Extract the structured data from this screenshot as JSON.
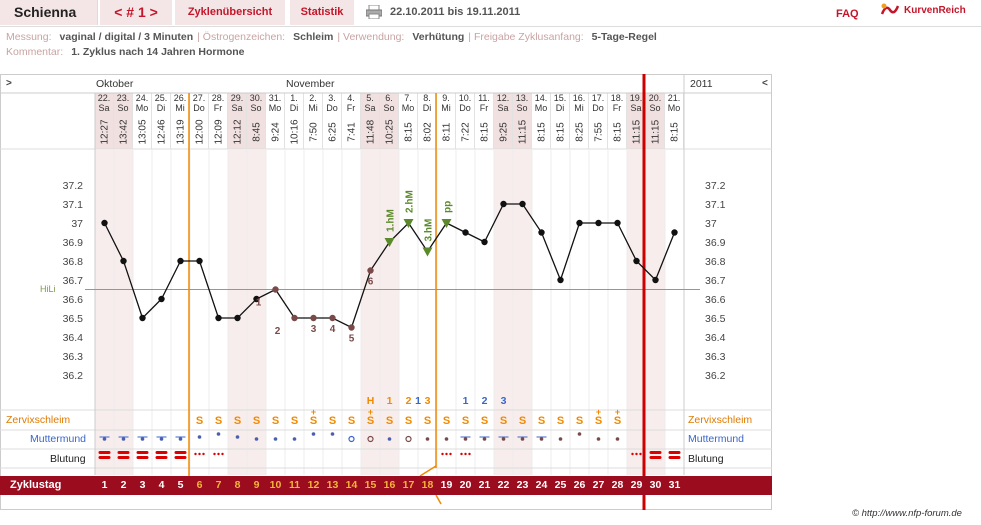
{
  "header": {
    "name": "Schienna",
    "cycle_nav": "< # 1 >",
    "tabs": [
      "Zyklenübersicht",
      "Statistik"
    ],
    "date_range": "22.10.2011 bis 19.11.2011",
    "faq": "FAQ",
    "brand": "KurvenReich"
  },
  "meta": {
    "line1": [
      {
        "k": "Messung:",
        "v": "vaginal / digital / 3 Minuten"
      },
      {
        "k": "Östrogenzeichen:",
        "v": "Schleim"
      },
      {
        "k": "Verwendung:",
        "v": "Verhütung"
      },
      {
        "k": "Freigabe Zyklusanfang:",
        "v": "5-Tage-Regel"
      }
    ],
    "line2": {
      "k": "Kommentar:",
      "v": "1. Zyklus nach 14 Jahren Hormone"
    }
  },
  "chart": {
    "nav_left": ">",
    "nav_right": "<",
    "months": [
      "Oktober",
      "November"
    ],
    "year": "2011",
    "days": [
      {
        "d": "22.",
        "w": "Sa",
        "t": "12:27",
        "pink": true
      },
      {
        "d": "23.",
        "w": "So",
        "t": "13:42",
        "pink": true
      },
      {
        "d": "24.",
        "w": "Mo",
        "t": "13:05",
        "pink": false
      },
      {
        "d": "25.",
        "w": "Di",
        "t": "12:46",
        "pink": false
      },
      {
        "d": "26.",
        "w": "Mi",
        "t": "13:19",
        "pink": false
      },
      {
        "d": "27.",
        "w": "Do",
        "t": "12:00",
        "pink": false
      },
      {
        "d": "28.",
        "w": "Fr",
        "t": "12:09",
        "pink": false
      },
      {
        "d": "29.",
        "w": "Sa",
        "t": "12:12",
        "pink": true
      },
      {
        "d": "30.",
        "w": "So",
        "t": "8:45",
        "pink": true
      },
      {
        "d": "31.",
        "w": "Mo",
        "t": "9:24",
        "pink": false
      },
      {
        "d": "1.",
        "w": "Di",
        "t": "10:16",
        "pink": false
      },
      {
        "d": "2.",
        "w": "Mi",
        "t": "7:50",
        "pink": false
      },
      {
        "d": "3.",
        "w": "Do",
        "t": "6:25",
        "pink": false
      },
      {
        "d": "4.",
        "w": "Fr",
        "t": "7:41",
        "pink": false
      },
      {
        "d": "5.",
        "w": "Sa",
        "t": "11:48",
        "pink": true
      },
      {
        "d": "6.",
        "w": "So",
        "t": "10:25",
        "pink": true
      },
      {
        "d": "7.",
        "w": "Mo",
        "t": "8:15",
        "pink": false
      },
      {
        "d": "8.",
        "w": "Di",
        "t": "8:02",
        "pink": false
      },
      {
        "d": "9.",
        "w": "Mi",
        "t": "8:11",
        "pink": false
      },
      {
        "d": "10.",
        "w": "Do",
        "t": "7:22",
        "pink": false
      },
      {
        "d": "11.",
        "w": "Fr",
        "t": "8:15",
        "pink": false
      },
      {
        "d": "12.",
        "w": "Sa",
        "t": "9:25",
        "pink": true
      },
      {
        "d": "13.",
        "w": "So",
        "t": "11:15",
        "pink": true
      },
      {
        "d": "14.",
        "w": "Mo",
        "t": "8:15",
        "pink": false
      },
      {
        "d": "15.",
        "w": "Di",
        "t": "8:15",
        "pink": false
      },
      {
        "d": "16.",
        "w": "Mi",
        "t": "8:25",
        "pink": false
      },
      {
        "d": "17.",
        "w": "Do",
        "t": "7:55",
        "pink": false
      },
      {
        "d": "18.",
        "w": "Fr",
        "t": "8:15",
        "pink": false
      },
      {
        "d": "19.",
        "w": "Sa",
        "t": "11:15",
        "pink": true
      },
      {
        "d": "20.",
        "w": "So",
        "t": "11:15",
        "pink": true
      },
      {
        "d": "21.",
        "w": "Mo",
        "t": "8:15",
        "pink": false
      }
    ],
    "hili_label": "HiLi",
    "row_labels": {
      "zervix": "Zervixschleim",
      "muttermund": "Muttermund",
      "blutung": "Blutung",
      "zyklustag": "Zyklustag"
    },
    "copyright": "© http://www.nfp-forum.de",
    "colors": {
      "accent": "#c4162a",
      "orange": "#f08a00",
      "blue": "#3a66c8",
      "green": "#5a8a2a",
      "marker": "#7a4a4a",
      "zyklus_bar": "#9b0d1e"
    }
  },
  "chart_data": {
    "type": "line",
    "title": "",
    "ylabel": "",
    "ylim": [
      36.1,
      37.3
    ],
    "y_ticks": [
      36.2,
      36.3,
      36.4,
      36.5,
      36.6,
      36.7,
      36.8,
      36.9,
      37,
      37.1,
      37.2
    ],
    "hili": 36.65,
    "temperatures": [
      37.0,
      36.8,
      36.5,
      36.6,
      36.8,
      36.8,
      36.5,
      36.5,
      36.6,
      36.65,
      36.5,
      36.5,
      36.5,
      36.45,
      36.75,
      36.9,
      37.0,
      36.85,
      37.0,
      36.95,
      36.9,
      37.1,
      37.1,
      36.95,
      36.7,
      37.0,
      37.0,
      37.0,
      36.8,
      36.7,
      36.95
    ],
    "low_markers": [
      {
        "day": 9,
        "label": "1"
      },
      {
        "day": 10,
        "label": "2"
      },
      {
        "day": 11,
        "label": "3"
      },
      {
        "day": 12,
        "label": "4"
      },
      {
        "day": 13,
        "label": "5"
      },
      {
        "day": 14,
        "label": "6"
      }
    ],
    "high_markers": [
      {
        "day": 15,
        "label": "1.hM"
      },
      {
        "day": 16,
        "label": "2.hM"
      },
      {
        "day": 17,
        "label": "3.hM"
      },
      {
        "day": 18,
        "label": "pp"
      }
    ],
    "cycle_days": [
      1,
      2,
      3,
      4,
      5,
      6,
      7,
      8,
      9,
      10,
      11,
      12,
      13,
      14,
      15,
      16,
      17,
      18,
      19,
      20,
      21,
      22,
      23,
      24,
      25,
      26,
      27,
      28,
      29,
      30,
      31
    ],
    "orange_days": [
      6,
      7,
      8,
      9,
      10,
      11,
      12,
      13,
      14,
      15,
      16,
      17,
      18
    ]
  },
  "annotations": {
    "top_letters": [
      {
        "day": 14,
        "text": "H",
        "color": "orange"
      },
      {
        "day": 15,
        "text": "1",
        "color": "orange"
      },
      {
        "day": 16,
        "text": "2",
        "color": "orange"
      },
      {
        "day": 16.5,
        "text": "1",
        "color": "blue"
      },
      {
        "day": 17,
        "text": "3",
        "color": "orange"
      },
      {
        "day": 19,
        "text": "1",
        "color": "blue"
      },
      {
        "day": 20,
        "text": "2",
        "color": "blue"
      },
      {
        "day": 21,
        "text": "3",
        "color": "blue"
      }
    ],
    "zervix": [
      "",
      "",
      "",
      "",
      "",
      "S",
      "S",
      "S",
      "S",
      "S",
      "S",
      "S+",
      "S",
      "S",
      "S+",
      "S",
      "S",
      "S",
      "S",
      "S",
      "S",
      "S",
      "S",
      "S",
      "S",
      "S",
      "S+",
      "S+",
      "",
      "",
      ""
    ],
    "blutung": [
      "stark",
      "stark",
      "stark",
      "stark",
      "stark",
      "leicht",
      "leicht",
      "",
      "",
      "",
      "",
      "",
      "",
      "",
      "",
      "",
      "",
      "",
      "leicht",
      "leicht",
      "",
      "",
      "",
      "",
      "",
      "",
      "",
      "",
      "leicht",
      "stark",
      "stark"
    ]
  }
}
